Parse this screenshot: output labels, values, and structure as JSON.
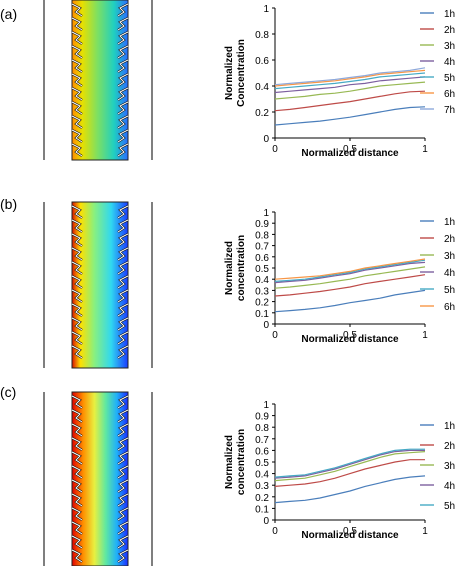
{
  "panels": [
    {
      "label": "(a)"
    },
    {
      "label": "(b)"
    },
    {
      "label": "(c)"
    }
  ],
  "colors": {
    "series": [
      "#4a7ebb",
      "#be4b48",
      "#98b954",
      "#7d60a0",
      "#46aac5",
      "#f79646",
      "#8ea9db"
    ],
    "gradient_low": "#1a1aff",
    "gradient_high": "#ff2200"
  },
  "chart_data": [
    {
      "type": "line",
      "xlabel": "Normalized distance",
      "ylabel": "Normalized Concentration",
      "xlim": [
        0,
        1
      ],
      "ylim": [
        0,
        1
      ],
      "xticks": [
        "0",
        "0.5",
        "1"
      ],
      "yticks": [
        "0",
        "0.2",
        "0.4",
        "0.6",
        "0.8",
        "1"
      ],
      "x": [
        0,
        0.1,
        0.2,
        0.3,
        0.4,
        0.5,
        0.6,
        0.7,
        0.8,
        0.9,
        1.0
      ],
      "series": [
        {
          "name": "1h",
          "values": [
            0.1,
            0.11,
            0.12,
            0.13,
            0.145,
            0.16,
            0.18,
            0.2,
            0.22,
            0.235,
            0.24
          ]
        },
        {
          "name": "2h",
          "values": [
            0.21,
            0.22,
            0.235,
            0.25,
            0.265,
            0.28,
            0.3,
            0.32,
            0.34,
            0.355,
            0.36
          ]
        },
        {
          "name": "3h",
          "values": [
            0.3,
            0.31,
            0.32,
            0.335,
            0.345,
            0.36,
            0.38,
            0.4,
            0.41,
            0.42,
            0.43
          ]
        },
        {
          "name": "4h",
          "values": [
            0.35,
            0.36,
            0.37,
            0.38,
            0.39,
            0.41,
            0.42,
            0.44,
            0.45,
            0.46,
            0.47
          ]
        },
        {
          "name": "5h",
          "values": [
            0.38,
            0.39,
            0.4,
            0.41,
            0.42,
            0.435,
            0.45,
            0.47,
            0.48,
            0.49,
            0.5
          ]
        },
        {
          "name": "6h",
          "values": [
            0.4,
            0.41,
            0.42,
            0.43,
            0.44,
            0.455,
            0.47,
            0.49,
            0.5,
            0.51,
            0.52
          ]
        },
        {
          "name": "7h",
          "values": [
            0.41,
            0.42,
            0.43,
            0.44,
            0.45,
            0.465,
            0.48,
            0.5,
            0.51,
            0.52,
            0.54
          ]
        }
      ]
    },
    {
      "type": "line",
      "xlabel": "Normalized distance",
      "ylabel": "Normalized concentration",
      "xlim": [
        0,
        1
      ],
      "ylim": [
        0,
        1
      ],
      "xticks": [
        "0",
        "0.5",
        "1"
      ],
      "yticks": [
        "0",
        "0.1",
        "0.2",
        "0.3",
        "0.4",
        "0.5",
        "0.6",
        "0.7",
        "0.8",
        "0.9",
        "1"
      ],
      "x": [
        0,
        0.1,
        0.2,
        0.3,
        0.4,
        0.5,
        0.6,
        0.7,
        0.8,
        0.9,
        1.0
      ],
      "series": [
        {
          "name": "1h",
          "values": [
            0.11,
            0.12,
            0.13,
            0.145,
            0.165,
            0.19,
            0.21,
            0.23,
            0.26,
            0.28,
            0.3
          ]
        },
        {
          "name": "2h",
          "values": [
            0.25,
            0.26,
            0.275,
            0.29,
            0.31,
            0.33,
            0.36,
            0.38,
            0.4,
            0.42,
            0.44
          ]
        },
        {
          "name": "3h",
          "values": [
            0.32,
            0.33,
            0.345,
            0.36,
            0.38,
            0.4,
            0.43,
            0.45,
            0.47,
            0.49,
            0.51
          ]
        },
        {
          "name": "4h",
          "values": [
            0.37,
            0.38,
            0.39,
            0.41,
            0.43,
            0.45,
            0.48,
            0.5,
            0.52,
            0.54,
            0.55
          ]
        },
        {
          "name": "5h",
          "values": [
            0.38,
            0.39,
            0.4,
            0.42,
            0.44,
            0.46,
            0.49,
            0.51,
            0.53,
            0.55,
            0.57
          ]
        },
        {
          "name": "6h",
          "values": [
            0.4,
            0.41,
            0.42,
            0.43,
            0.45,
            0.47,
            0.5,
            0.52,
            0.54,
            0.56,
            0.58
          ]
        }
      ]
    },
    {
      "type": "line",
      "xlabel": "Normalized distance",
      "ylabel": "Normalized concentration",
      "xlim": [
        0,
        1
      ],
      "ylim": [
        0,
        1
      ],
      "xticks": [
        "0",
        "0.5",
        "1"
      ],
      "yticks": [
        "0",
        "0.1",
        "0.2",
        "0.3",
        "0.4",
        "0.5",
        "0.6",
        "0.7",
        "0.8",
        "0.9",
        "1"
      ],
      "x": [
        0,
        0.1,
        0.2,
        0.3,
        0.4,
        0.5,
        0.6,
        0.7,
        0.8,
        0.9,
        1.0
      ],
      "series": [
        {
          "name": "1h",
          "values": [
            0.15,
            0.16,
            0.17,
            0.19,
            0.22,
            0.25,
            0.29,
            0.32,
            0.35,
            0.37,
            0.38
          ]
        },
        {
          "name": "2h",
          "values": [
            0.29,
            0.3,
            0.31,
            0.33,
            0.36,
            0.4,
            0.44,
            0.47,
            0.5,
            0.52,
            0.52
          ]
        },
        {
          "name": "3h",
          "values": [
            0.34,
            0.35,
            0.36,
            0.39,
            0.42,
            0.46,
            0.5,
            0.54,
            0.57,
            0.58,
            0.59
          ]
        },
        {
          "name": "4h",
          "values": [
            0.36,
            0.37,
            0.38,
            0.41,
            0.44,
            0.48,
            0.52,
            0.56,
            0.59,
            0.6,
            0.6
          ]
        },
        {
          "name": "5h",
          "values": [
            0.37,
            0.38,
            0.39,
            0.42,
            0.45,
            0.49,
            0.53,
            0.57,
            0.6,
            0.61,
            0.61
          ]
        }
      ]
    }
  ]
}
